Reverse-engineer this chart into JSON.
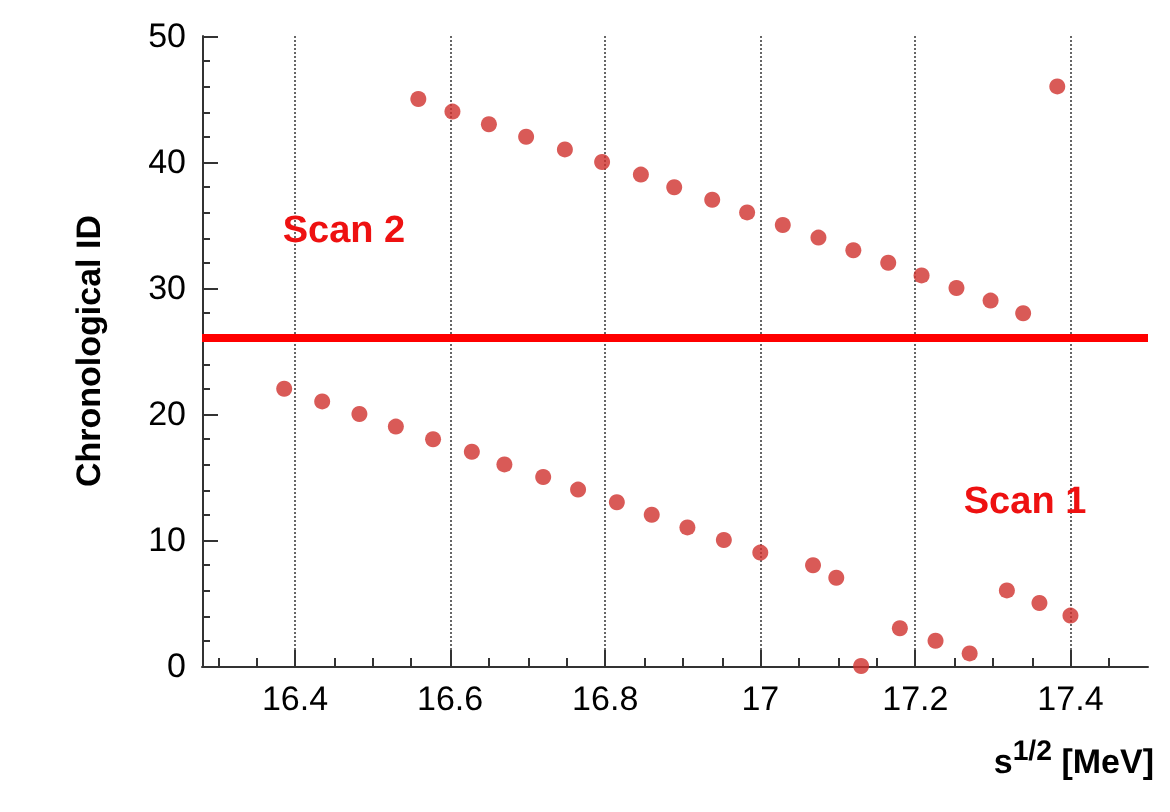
{
  "chart_data": {
    "type": "scatter",
    "xlabel": "s$^{1/2}$ [MeV]",
    "ylabel": "Chronological ID",
    "xlim": [
      16.28,
      17.5
    ],
    "xticks": [
      16.4,
      16.6,
      16.8,
      17,
      17.2,
      17.4
    ],
    "ylim": [
      0,
      50
    ],
    "yticks": [
      0,
      10,
      20,
      30,
      40,
      50
    ],
    "grid": "x",
    "marker": "circle",
    "series": [
      {
        "color": "#d0312d",
        "x": [
          16.386,
          16.435,
          16.483,
          16.53,
          16.578,
          16.628,
          16.67,
          16.72,
          16.765,
          16.815,
          16.86,
          16.906,
          16.953,
          17.0,
          17.068,
          17.098,
          17.13,
          17.18,
          17.226,
          17.27,
          17.318,
          17.36,
          17.4,
          16.559,
          16.603,
          16.65,
          16.698,
          16.748,
          16.796,
          16.846,
          16.889,
          16.938,
          16.983,
          17.029,
          17.075,
          17.12,
          17.165,
          17.208,
          17.253,
          17.297,
          17.339,
          17.383
        ],
        "values": [
          22,
          21,
          20,
          19,
          18,
          17,
          16,
          15,
          14,
          13,
          12,
          11,
          10,
          9,
          8,
          7,
          0,
          3,
          2,
          1,
          6,
          5,
          4,
          45,
          44,
          43,
          42,
          41,
          40,
          39,
          38,
          37,
          36,
          35,
          34,
          33,
          32,
          31,
          30,
          29,
          28,
          46
        ]
      }
    ],
    "ref_lines": [
      {
        "axis": "y",
        "value": 26,
        "color": "#ff0000"
      }
    ],
    "annotations": [
      "Scan 2",
      "Scan 1"
    ]
  }
}
